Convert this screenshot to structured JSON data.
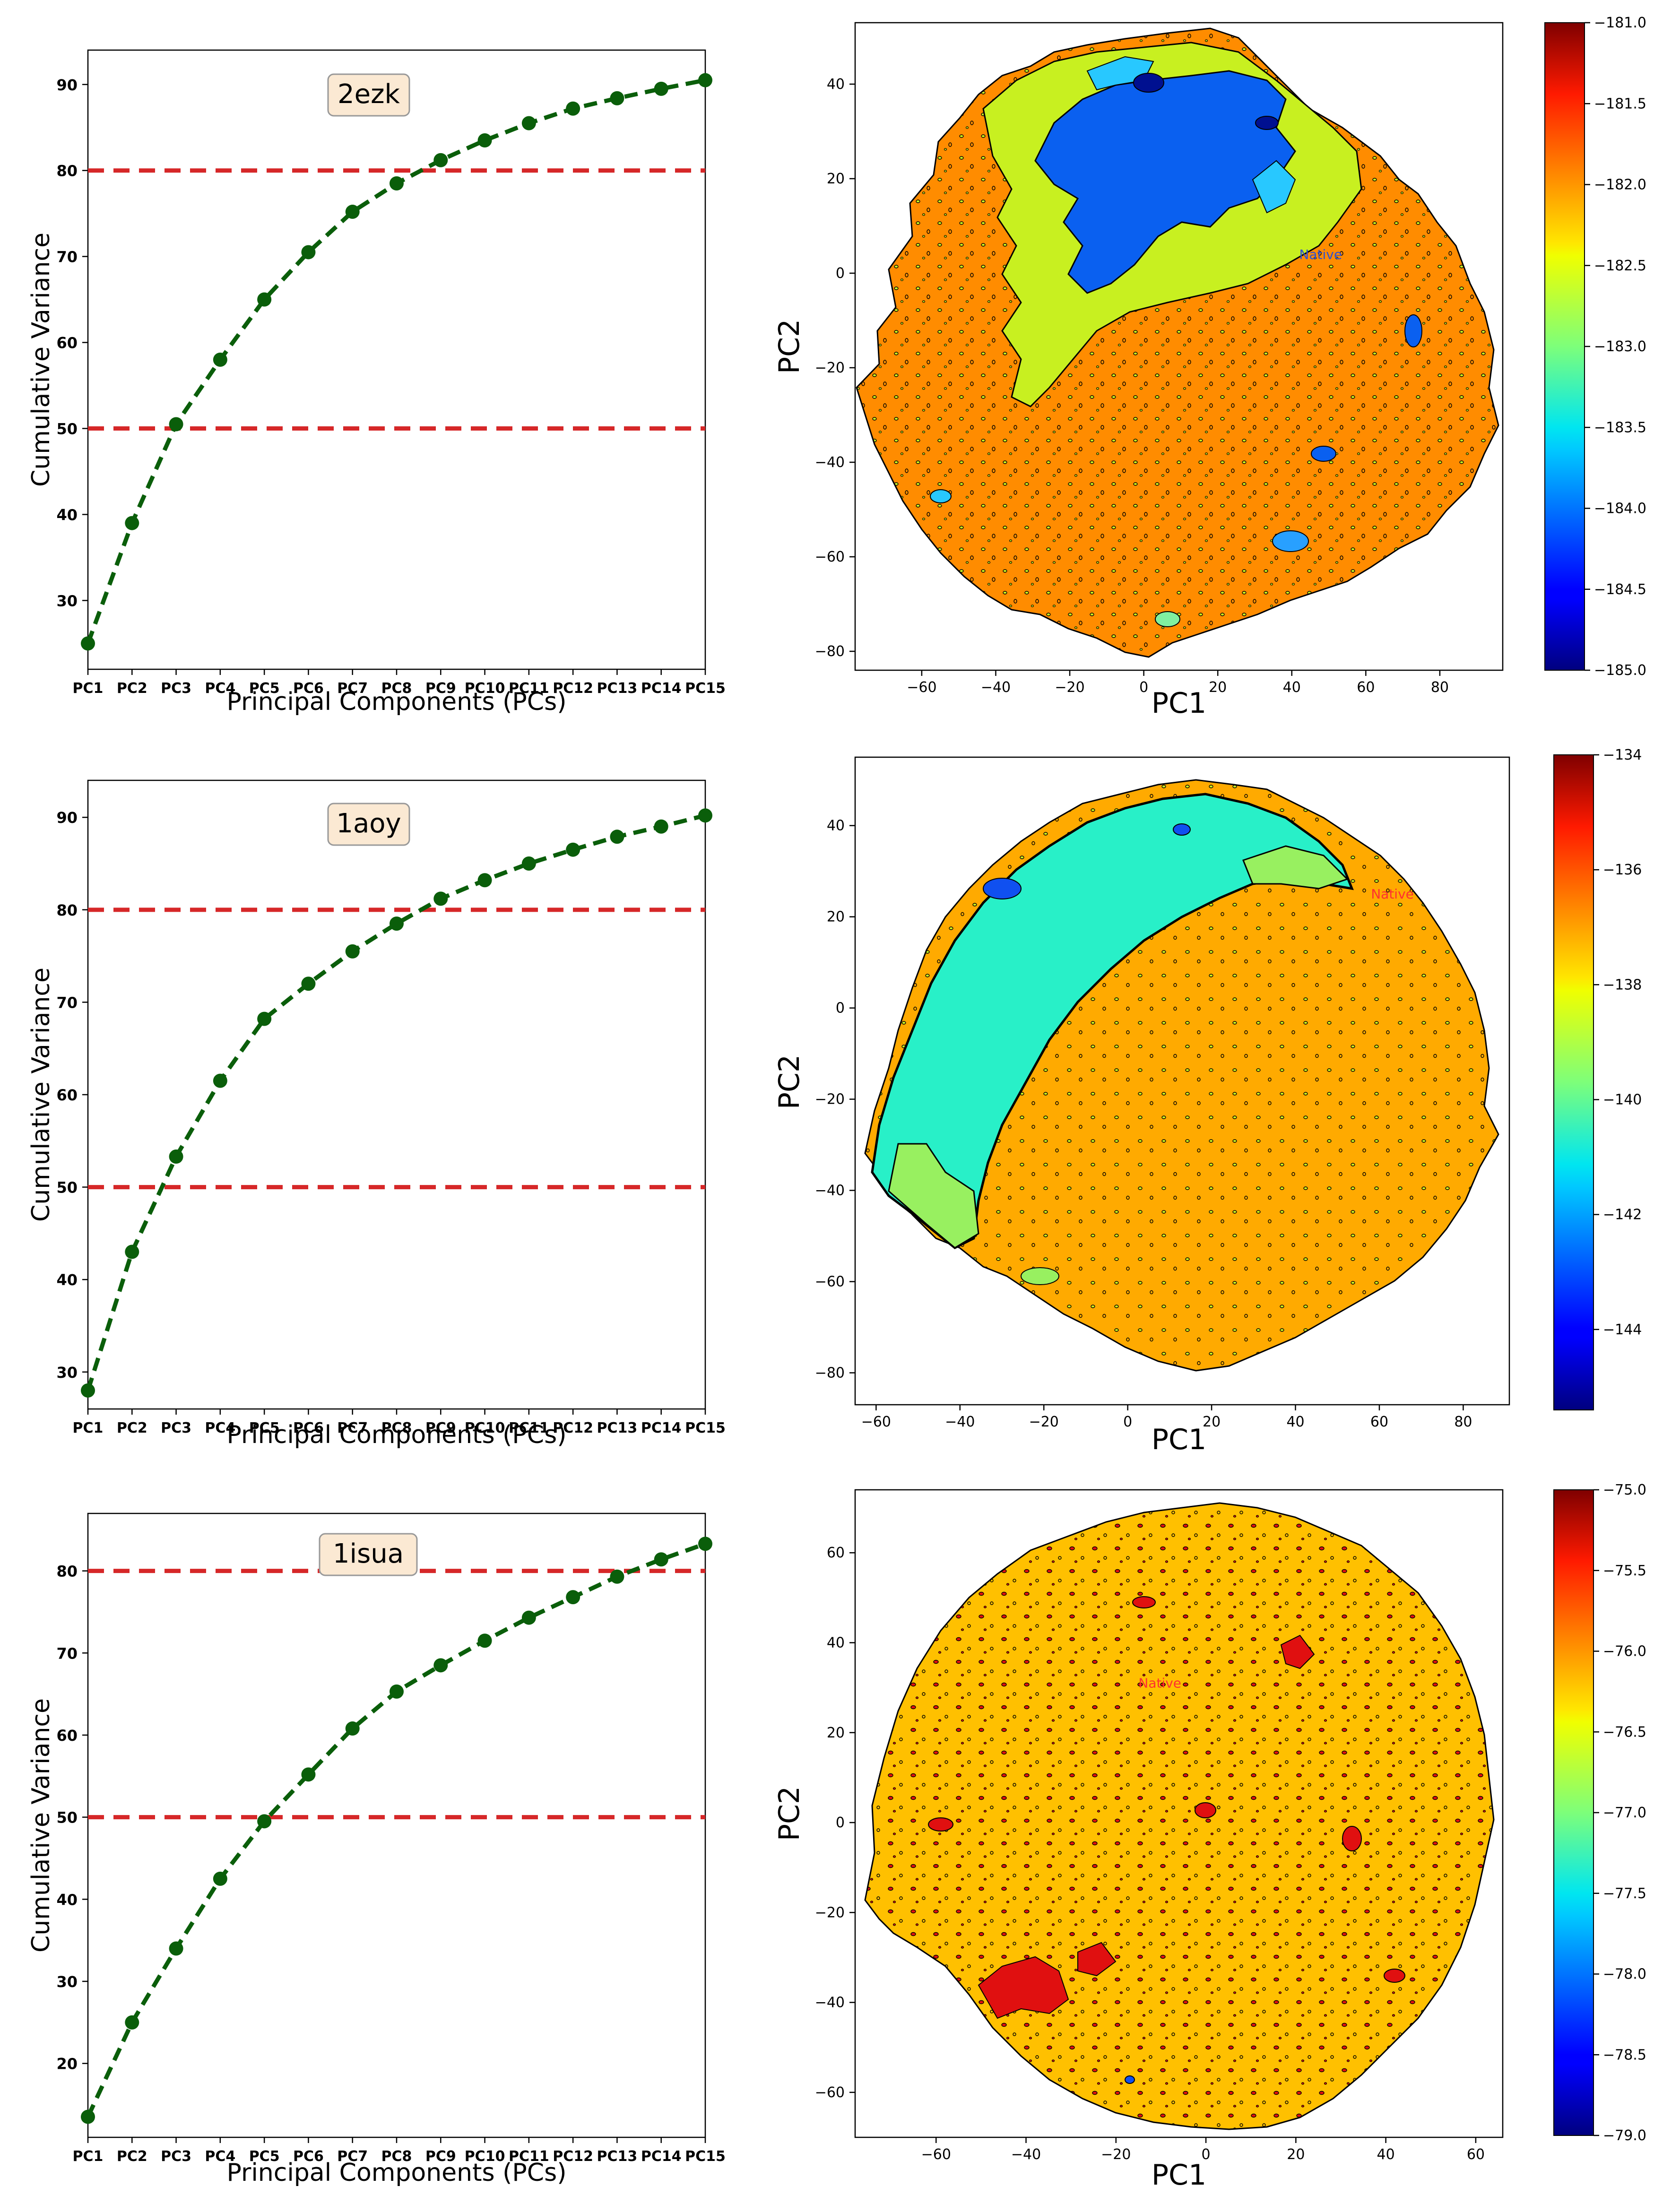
{
  "colors": {
    "curve": "#0a5e0a",
    "threshold": "#d62728",
    "badge_bg": "#fbe9d3",
    "badge_border": "#999999",
    "axis": "#000000",
    "orange_fill": "#ff8c00",
    "yellow_fill": "#ffbf00",
    "cyan_fill": "#28f0c8",
    "blue_fill": "#0a60f0",
    "lime_fill": "#c8f020",
    "red_fill": "#e01010"
  },
  "chart_data": [
    {
      "type": "line",
      "id": "var-2ezk",
      "badge": "2ezk",
      "xlabel": "Principal Components (PCs)",
      "ylabel": "Cumulative Variance",
      "categories": [
        "PC1",
        "PC2",
        "PC3",
        "PC4",
        "PC5",
        "PC6",
        "PC7",
        "PC8",
        "PC9",
        "PC10",
        "PC11",
        "PC12",
        "PC13",
        "PC14",
        "PC15"
      ],
      "values": [
        25.0,
        39.0,
        50.5,
        58.0,
        65.0,
        70.5,
        75.2,
        78.5,
        81.2,
        83.5,
        85.5,
        87.2,
        88.4,
        89.5,
        90.5
      ],
      "thresholds": [
        80,
        50
      ],
      "ylim": [
        22,
        94
      ],
      "yticks": [
        30,
        40,
        50,
        60,
        70,
        80,
        90
      ]
    },
    {
      "type": "line",
      "id": "var-1aoy",
      "badge": "1aoy",
      "xlabel": "Principal Components (PCs)",
      "ylabel": "Cumulative Variance",
      "categories": [
        "PC1",
        "PC2",
        "PC3",
        "PC4",
        "PC5",
        "PC6",
        "PC7",
        "PC8",
        "PC9",
        "PC10",
        "PC11",
        "PC12",
        "PC13",
        "PC14",
        "PC15"
      ],
      "values": [
        28.0,
        43.0,
        53.3,
        61.5,
        68.2,
        72.0,
        75.5,
        78.5,
        81.2,
        83.2,
        85.0,
        86.5,
        87.9,
        89.0,
        90.2
      ],
      "thresholds": [
        80,
        50
      ],
      "ylim": [
        26,
        94
      ],
      "yticks": [
        30,
        40,
        50,
        60,
        70,
        80,
        90
      ]
    },
    {
      "type": "line",
      "id": "var-1isua",
      "badge": "1isua",
      "xlabel": "Principal Components (PCs)",
      "ylabel": "Cumulative Variance",
      "categories": [
        "PC1",
        "PC2",
        "PC3",
        "PC4",
        "PC5",
        "PC6",
        "PC7",
        "PC8",
        "PC9",
        "PC10",
        "PC11",
        "PC12",
        "PC13",
        "PC14",
        "PC15"
      ],
      "values": [
        13.5,
        25.0,
        34.0,
        42.5,
        49.5,
        55.2,
        60.8,
        65.3,
        68.5,
        71.5,
        74.3,
        76.8,
        79.3,
        81.4,
        83.3
      ],
      "thresholds": [
        80,
        50
      ],
      "ylim": [
        11,
        87
      ],
      "yticks": [
        20,
        30,
        40,
        50,
        60,
        70,
        80
      ]
    },
    {
      "type": "heatmap",
      "id": "fel-2ezk",
      "xlabel": "PC1",
      "ylabel": "PC2",
      "xlim": [
        -78,
        97
      ],
      "ylim": [
        -84,
        53
      ],
      "xticks": [
        -60,
        -40,
        -20,
        0,
        20,
        40,
        60,
        80
      ],
      "yticks": [
        -80,
        -60,
        -40,
        -20,
        0,
        20,
        40
      ],
      "annotation": "Native",
      "annotation_pos": [
        42,
        3
      ],
      "colorbar_ticks": [
        "-181.0",
        "-181.5",
        "-182.0",
        "-182.5",
        "-183.0",
        "-183.5",
        "-184.0",
        "-184.5",
        "-185.0"
      ],
      "colorbar_range": [
        -185.0,
        -181.0
      ]
    },
    {
      "type": "heatmap",
      "id": "fel-1aoy",
      "xlabel": "PC1",
      "ylabel": "PC2",
      "xlim": [
        -65,
        91
      ],
      "ylim": [
        -87,
        55
      ],
      "xticks": [
        -60,
        -40,
        -20,
        0,
        20,
        40,
        60,
        80
      ],
      "yticks": [
        -80,
        -60,
        -40,
        -20,
        0,
        20,
        40
      ],
      "annotation": "Native",
      "annotation_pos": [
        58,
        24
      ],
      "colorbar_ticks": [
        "-134",
        "-136",
        "-138",
        "-140",
        "-142",
        "-144"
      ],
      "colorbar_range": [
        -145.4,
        -134
      ]
    },
    {
      "type": "heatmap",
      "id": "fel-1isua",
      "xlabel": "PC1",
      "ylabel": "PC2",
      "xlim": [
        -78,
        66
      ],
      "ylim": [
        -70,
        74
      ],
      "xticks": [
        -60,
        -40,
        -20,
        0,
        20,
        40,
        60
      ],
      "yticks": [
        -60,
        -40,
        -20,
        0,
        20,
        40,
        60
      ],
      "annotation": "Native",
      "annotation_pos": [
        -15,
        30
      ],
      "colorbar_ticks": [
        "-75.0",
        "-75.5",
        "-76.0",
        "-76.5",
        "-77.0",
        "-77.5",
        "-78.0",
        "-78.5",
        "-79.0"
      ],
      "colorbar_range": [
        -79.0,
        -75.0
      ]
    }
  ]
}
